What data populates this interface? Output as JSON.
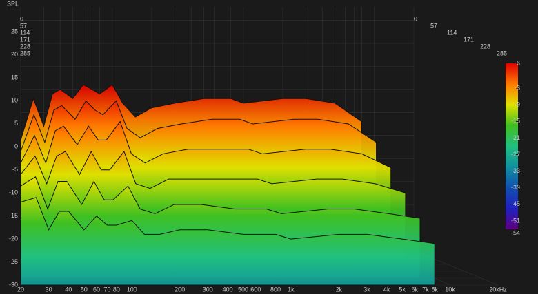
{
  "chart_data": {
    "type": "waterfall",
    "y_label": "SPL",
    "x": [
      20,
      25,
      30,
      35,
      40,
      50,
      60,
      70,
      80,
      100,
      120,
      150,
      200,
      300,
      500,
      800,
      1000,
      2000,
      3000,
      5000,
      8000
    ],
    "xlim": [
      20,
      20000
    ],
    "xscale": "log",
    "xticks": [
      20,
      30,
      40,
      50,
      60,
      70,
      80,
      100,
      200,
      300,
      400,
      500,
      600,
      800,
      {
        "value": 1000,
        "label": "1k"
      },
      {
        "value": 2000,
        "label": "2k"
      },
      {
        "value": 3000,
        "label": "3k"
      },
      {
        "value": 4000,
        "label": "4k"
      },
      {
        "value": 5000,
        "label": "5k"
      },
      {
        "value": 6000,
        "label": "6k"
      },
      {
        "value": 7000,
        "label": "7k"
      },
      {
        "value": 8000,
        "label": "8k"
      },
      {
        "value": 10000,
        "label": "10k"
      },
      {
        "value": 20000,
        "label": "20kHz"
      }
    ],
    "ylim": [
      -30,
      25
    ],
    "yticks": [
      25,
      20,
      15,
      10,
      5,
      0,
      -5,
      -10,
      -15,
      -20,
      -25,
      -30
    ],
    "tlim": [
      0,
      285
    ],
    "tticks": [
      0,
      57,
      114,
      171,
      228,
      285
    ],
    "series": [
      {
        "time": 0,
        "values": [
          -6,
          3,
          -3,
          4,
          5,
          3,
          6,
          5,
          4,
          6,
          2,
          -1,
          1,
          2,
          3,
          3,
          2,
          3,
          3,
          2,
          -2
        ]
      },
      {
        "time": 57,
        "values": [
          -7,
          1,
          -5,
          2,
          3,
          0,
          4,
          2,
          1,
          4,
          -2,
          -4,
          -2,
          -1,
          0,
          0,
          -1,
          0,
          0,
          -1,
          -5
        ]
      },
      {
        "time": 114,
        "values": [
          -8,
          -2,
          -8,
          -1,
          0,
          -4,
          0,
          -3,
          -3,
          1,
          -6,
          -8,
          -6,
          -5,
          -5,
          -5,
          -6,
          -5,
          -5,
          -6,
          -9
        ]
      },
      {
        "time": 171,
        "values": [
          -9,
          -5,
          -11,
          -5,
          -4,
          -9,
          -4,
          -8,
          -8,
          -4,
          -11,
          -12,
          -10,
          -10,
          -10,
          -10,
          -11,
          -10,
          -10,
          -11,
          -13
        ]
      },
      {
        "time": 228,
        "values": [
          -10,
          -8,
          -15,
          -9,
          -9,
          -14,
          -9,
          -13,
          -13,
          -10,
          -15,
          -16,
          -14,
          -14,
          -15,
          -15,
          -16,
          -15,
          -15,
          -16,
          -17
        ]
      },
      {
        "time": 285,
        "values": [
          -12,
          -11,
          -18,
          -14,
          -14,
          -18,
          -15,
          -17,
          -17,
          -16,
          -19,
          -19,
          -18,
          -18,
          -19,
          -19,
          -20,
          -19,
          -19,
          -20,
          -21
        ]
      }
    ],
    "colorbar": {
      "lim": [
        -54,
        6
      ],
      "ticks": [
        6,
        -3,
        -9,
        -15,
        -21,
        -27,
        -33,
        -39,
        -45,
        -51,
        -54
      ],
      "colors": [
        "#e00000",
        "#ff7a00",
        "#e0e000",
        "#40c020",
        "#20c080",
        "#1090a0",
        "#1050b0",
        "#2020c0",
        "#600080"
      ]
    },
    "grid": true
  }
}
